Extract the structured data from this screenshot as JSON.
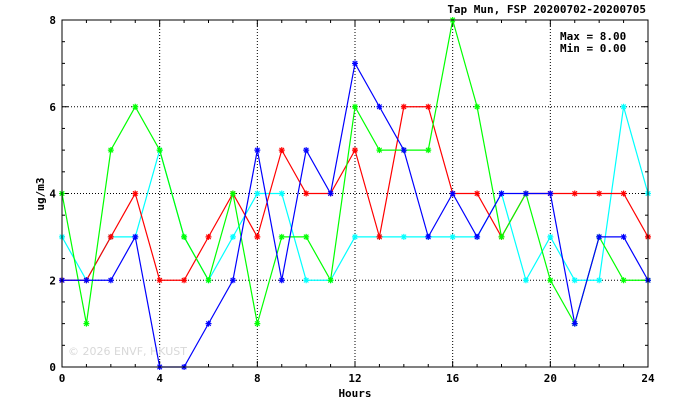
{
  "chart_data": {
    "type": "line",
    "title": "Tap Mun, FSP 20200702-20200705",
    "xlabel": "Hours",
    "ylabel": "ug/m3",
    "xlim": [
      0,
      24
    ],
    "ylim": [
      0,
      8
    ],
    "xticks": [
      0,
      4,
      8,
      12,
      16,
      20,
      24
    ],
    "yticks": [
      0,
      2,
      4,
      6,
      8
    ],
    "grid": true,
    "stats": {
      "max": "Max = 8.00",
      "min": "Min = 0.00"
    },
    "watermark": "© 2026 ENVF, HKUST",
    "x": [
      0,
      1,
      2,
      3,
      4,
      5,
      6,
      7,
      8,
      9,
      10,
      11,
      12,
      13,
      14,
      15,
      16,
      17,
      18,
      19,
      20,
      21,
      22,
      23,
      24
    ],
    "series": [
      {
        "color": "#00ffff",
        "values": [
          3,
          2,
          3,
          3,
          5,
          3,
          2,
          3,
          4,
          4,
          2,
          2,
          3,
          3,
          3,
          3,
          3,
          3,
          4,
          2,
          3,
          2,
          2,
          6,
          4
        ]
      },
      {
        "color": "#ff0000",
        "values": [
          2,
          2,
          3,
          4,
          2,
          2,
          3,
          4,
          3,
          5,
          4,
          4,
          5,
          3,
          6,
          6,
          4,
          4,
          3,
          4,
          4,
          4,
          4,
          4,
          3
        ]
      },
      {
        "color": "#00ff00",
        "values": [
          4,
          1,
          5,
          6,
          5,
          3,
          2,
          4,
          1,
          3,
          3,
          2,
          6,
          5,
          5,
          5,
          8,
          6,
          3,
          4,
          2,
          1,
          3,
          2,
          2
        ]
      },
      {
        "color": "#0000ff",
        "values": [
          2,
          2,
          2,
          3,
          0,
          0,
          1,
          2,
          5,
          2,
          5,
          4,
          7,
          6,
          5,
          3,
          4,
          3,
          4,
          4,
          4,
          1,
          3,
          3,
          2
        ]
      }
    ]
  }
}
